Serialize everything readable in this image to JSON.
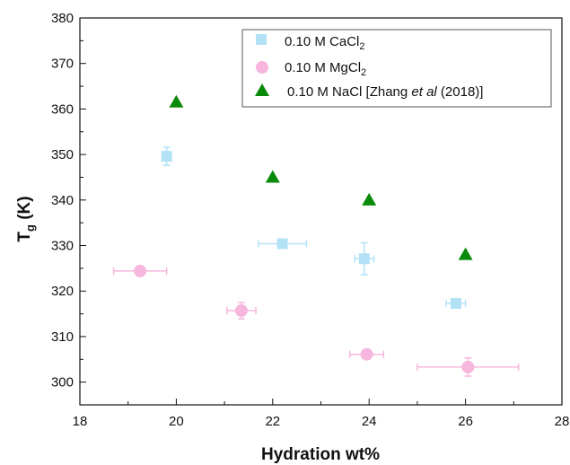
{
  "chart_data": {
    "type": "scatter",
    "xlabel": "Hydration wt%",
    "ylabel_main": "T",
    "ylabel_sub": "g",
    "ylabel_unit": " (K)",
    "xlim": [
      18,
      28
    ],
    "ylim": [
      295,
      380
    ],
    "xticks": [
      "18",
      "20",
      "22",
      "24",
      "26",
      "28"
    ],
    "yticks": [
      "300",
      "310",
      "320",
      "330",
      "340",
      "350",
      "360",
      "370",
      "380"
    ],
    "grid": false,
    "legend_placement": "top-right",
    "series": [
      {
        "name_main": "0.10 M CaCl",
        "name_sub": "2",
        "name_tail": "",
        "name_italic": "",
        "name_end": "",
        "marker": "square",
        "color": "#b3e2f7",
        "points": [
          {
            "x": 19.8,
            "y": 349.6,
            "xerr": 0.0,
            "yerr": 2.0
          },
          {
            "x": 22.2,
            "y": 330.4,
            "xerr": 0.5,
            "yerr": 0.0
          },
          {
            "x": 23.9,
            "y": 327.1,
            "xerr": 0.2,
            "yerr": 3.5
          },
          {
            "x": 25.8,
            "y": 317.3,
            "xerr": 0.2,
            "yerr": 0.0
          }
        ]
      },
      {
        "name_main": "0.10 M MgCl",
        "name_sub": "2",
        "name_tail": "",
        "name_italic": "",
        "name_end": "",
        "marker": "circle",
        "color": "#f6b6dd",
        "points": [
          {
            "x": 19.25,
            "y": 324.4,
            "xerr": 0.55,
            "yerr": 0.0
          },
          {
            "x": 21.35,
            "y": 315.7,
            "xerr": 0.3,
            "yerr": 1.8
          },
          {
            "x": 23.95,
            "y": 306.1,
            "xerr": 0.35,
            "yerr": 0.0
          },
          {
            "x": 26.05,
            "y": 303.3,
            "xerr": 1.05,
            "yerr": 2.0
          }
        ]
      },
      {
        "name_main": "0.10 M NaCl  [Zhang ",
        "name_sub": "",
        "name_tail": "",
        "name_italic": "et al",
        "name_end": " (2018)]",
        "marker": "triangle",
        "color": "#0a8a0a",
        "points": [
          {
            "x": 20.0,
            "y": 361.5,
            "xerr": 0,
            "yerr": 0
          },
          {
            "x": 22.0,
            "y": 345.0,
            "xerr": 0,
            "yerr": 0
          },
          {
            "x": 24.0,
            "y": 340.0,
            "xerr": 0,
            "yerr": 0
          },
          {
            "x": 26.0,
            "y": 328.0,
            "xerr": 0,
            "yerr": 0
          }
        ]
      }
    ]
  }
}
